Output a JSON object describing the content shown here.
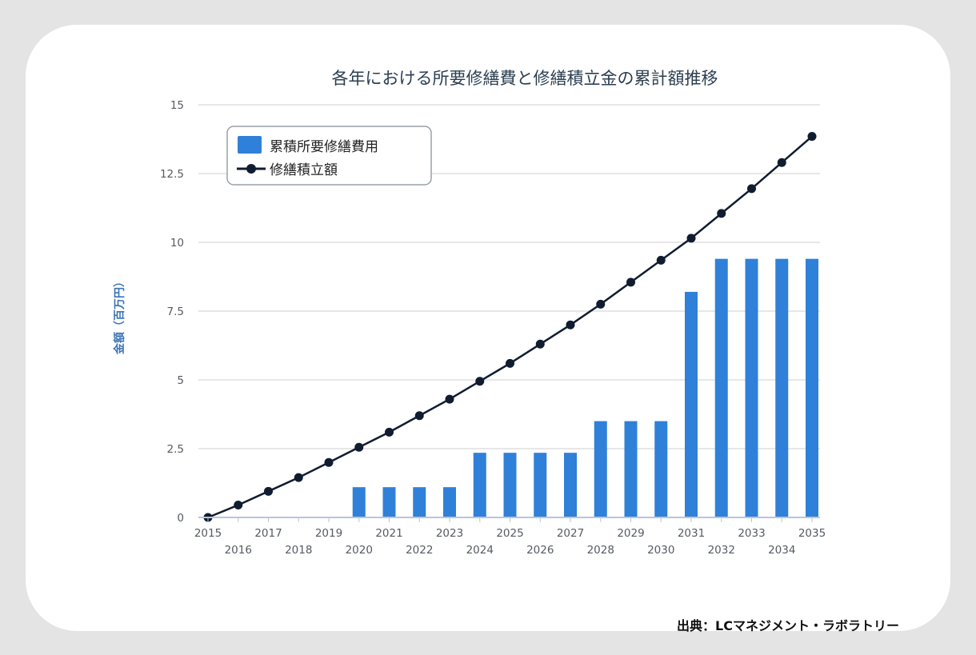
{
  "source": "出典：LCマネジメント・ラボラトリー",
  "chart_data": {
    "type": "bar",
    "title": "各年における所要修繕費と修繕積立金の累計額推移",
    "ylabel": "金額（百万円）",
    "xlabel": "",
    "ylim": [
      0,
      15
    ],
    "yticks": [
      0,
      2.5,
      5,
      7.5,
      10,
      12.5,
      15
    ],
    "ytick_labels": [
      "0",
      "2.5",
      "5",
      "7.5",
      "10",
      "12.5",
      "15"
    ],
    "grid": true,
    "legend_position": "top-left",
    "categories": [
      "2015",
      "2016",
      "2017",
      "2018",
      "2019",
      "2020",
      "2021",
      "2022",
      "2023",
      "2024",
      "2025",
      "2026",
      "2027",
      "2028",
      "2029",
      "2030",
      "2031",
      "2032",
      "2033",
      "2034",
      "2035"
    ],
    "series": [
      {
        "name": "累積所要修繕費用",
        "type": "bar",
        "color": "#2f80d8",
        "values": [
          0,
          0,
          0,
          0,
          0,
          1.1,
          1.1,
          1.1,
          1.1,
          2.35,
          2.35,
          2.35,
          2.35,
          3.5,
          3.5,
          3.5,
          8.2,
          9.4,
          9.4,
          9.4,
          9.4
        ]
      },
      {
        "name": "修繕積立額",
        "type": "line",
        "color": "#101c30",
        "values": [
          0,
          0.45,
          0.95,
          1.45,
          2.0,
          2.55,
          3.1,
          3.7,
          4.3,
          4.95,
          5.6,
          6.3,
          7.0,
          7.75,
          8.55,
          9.35,
          10.15,
          11.05,
          11.95,
          12.9,
          13.85
        ]
      }
    ]
  }
}
